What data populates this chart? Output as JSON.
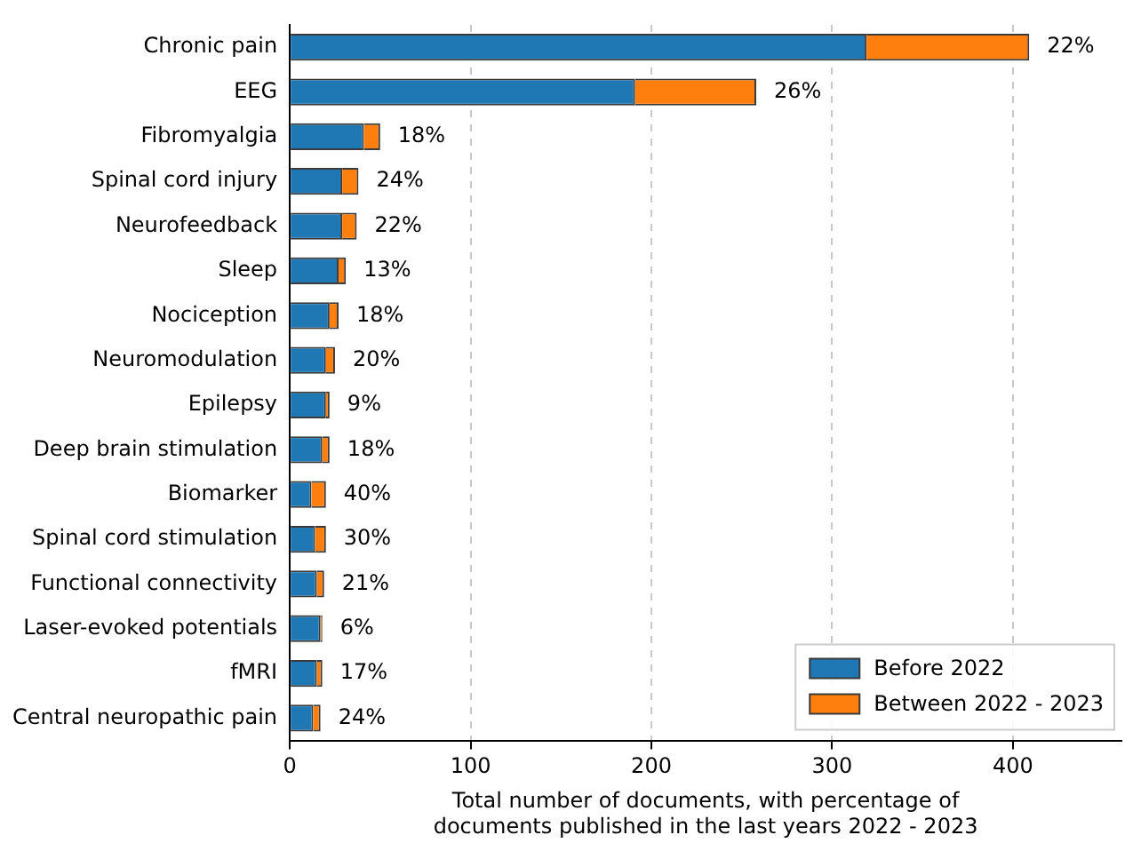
{
  "chart_data": {
    "type": "bar",
    "orientation": "horizontal",
    "stacked": true,
    "categories": [
      "Chronic pain",
      "EEG",
      "Fibromyalgia",
      "Spinal cord injury",
      "Neurofeedback",
      "Sleep",
      "Nociception",
      "Neuromodulation",
      "Epilepsy",
      "Deep brain stimulation",
      "Biomarker",
      "Spinal cord stimulation",
      "Functional connectivity",
      "Laser-evoked potentials",
      "fMRI",
      "Central neuropathic pain"
    ],
    "series": [
      {
        "name": "Before 2022",
        "color": "#1f77b4",
        "values": [
          319,
          191,
          41,
          29,
          29,
          27,
          22,
          20,
          20,
          18,
          12,
          14,
          15,
          17,
          15,
          13
        ]
      },
      {
        "name": "Between 2022 - 2023",
        "color": "#ff7f0e",
        "values": [
          90,
          67,
          9,
          9,
          8,
          4,
          5,
          5,
          2,
          4,
          8,
          6,
          4,
          1,
          3,
          4
        ]
      }
    ],
    "annotations": [
      {
        "text": "22%",
        "x": 409,
        "y": "Chronic pain"
      },
      {
        "text": "26%",
        "x": 258,
        "y": "EEG"
      },
      {
        "text": "18%",
        "x": 50,
        "y": "Fibromyalgia"
      },
      {
        "text": "24%",
        "x": 38,
        "y": "Spinal cord injury"
      },
      {
        "text": "22%",
        "x": 37,
        "y": "Neurofeedback"
      },
      {
        "text": "13%",
        "x": 31,
        "y": "Sleep"
      },
      {
        "text": "18%",
        "x": 27,
        "y": "Nociception"
      },
      {
        "text": "20%",
        "x": 25,
        "y": "Neuromodulation"
      },
      {
        "text": "9%",
        "x": 22,
        "y": "Epilepsy"
      },
      {
        "text": "18%",
        "x": 22,
        "y": "Deep brain stimulation"
      },
      {
        "text": "40%",
        "x": 20,
        "y": "Biomarker"
      },
      {
        "text": "30%",
        "x": 20,
        "y": "Spinal cord stimulation"
      },
      {
        "text": "21%",
        "x": 19,
        "y": "Functional connectivity"
      },
      {
        "text": "6%",
        "x": 18,
        "y": "Laser-evoked potentials"
      },
      {
        "text": "17%",
        "x": 18,
        "y": "fMRI"
      },
      {
        "text": "24%",
        "x": 17,
        "y": "Central neuropathic pain"
      }
    ],
    "xlabel": "Total number of documents, with percentage of documents published in the last years 2022 - 2023",
    "xlim": [
      0,
      460
    ],
    "xticks": [
      0,
      100,
      200,
      300,
      400
    ],
    "grid": "x",
    "legend": "bottom right"
  }
}
